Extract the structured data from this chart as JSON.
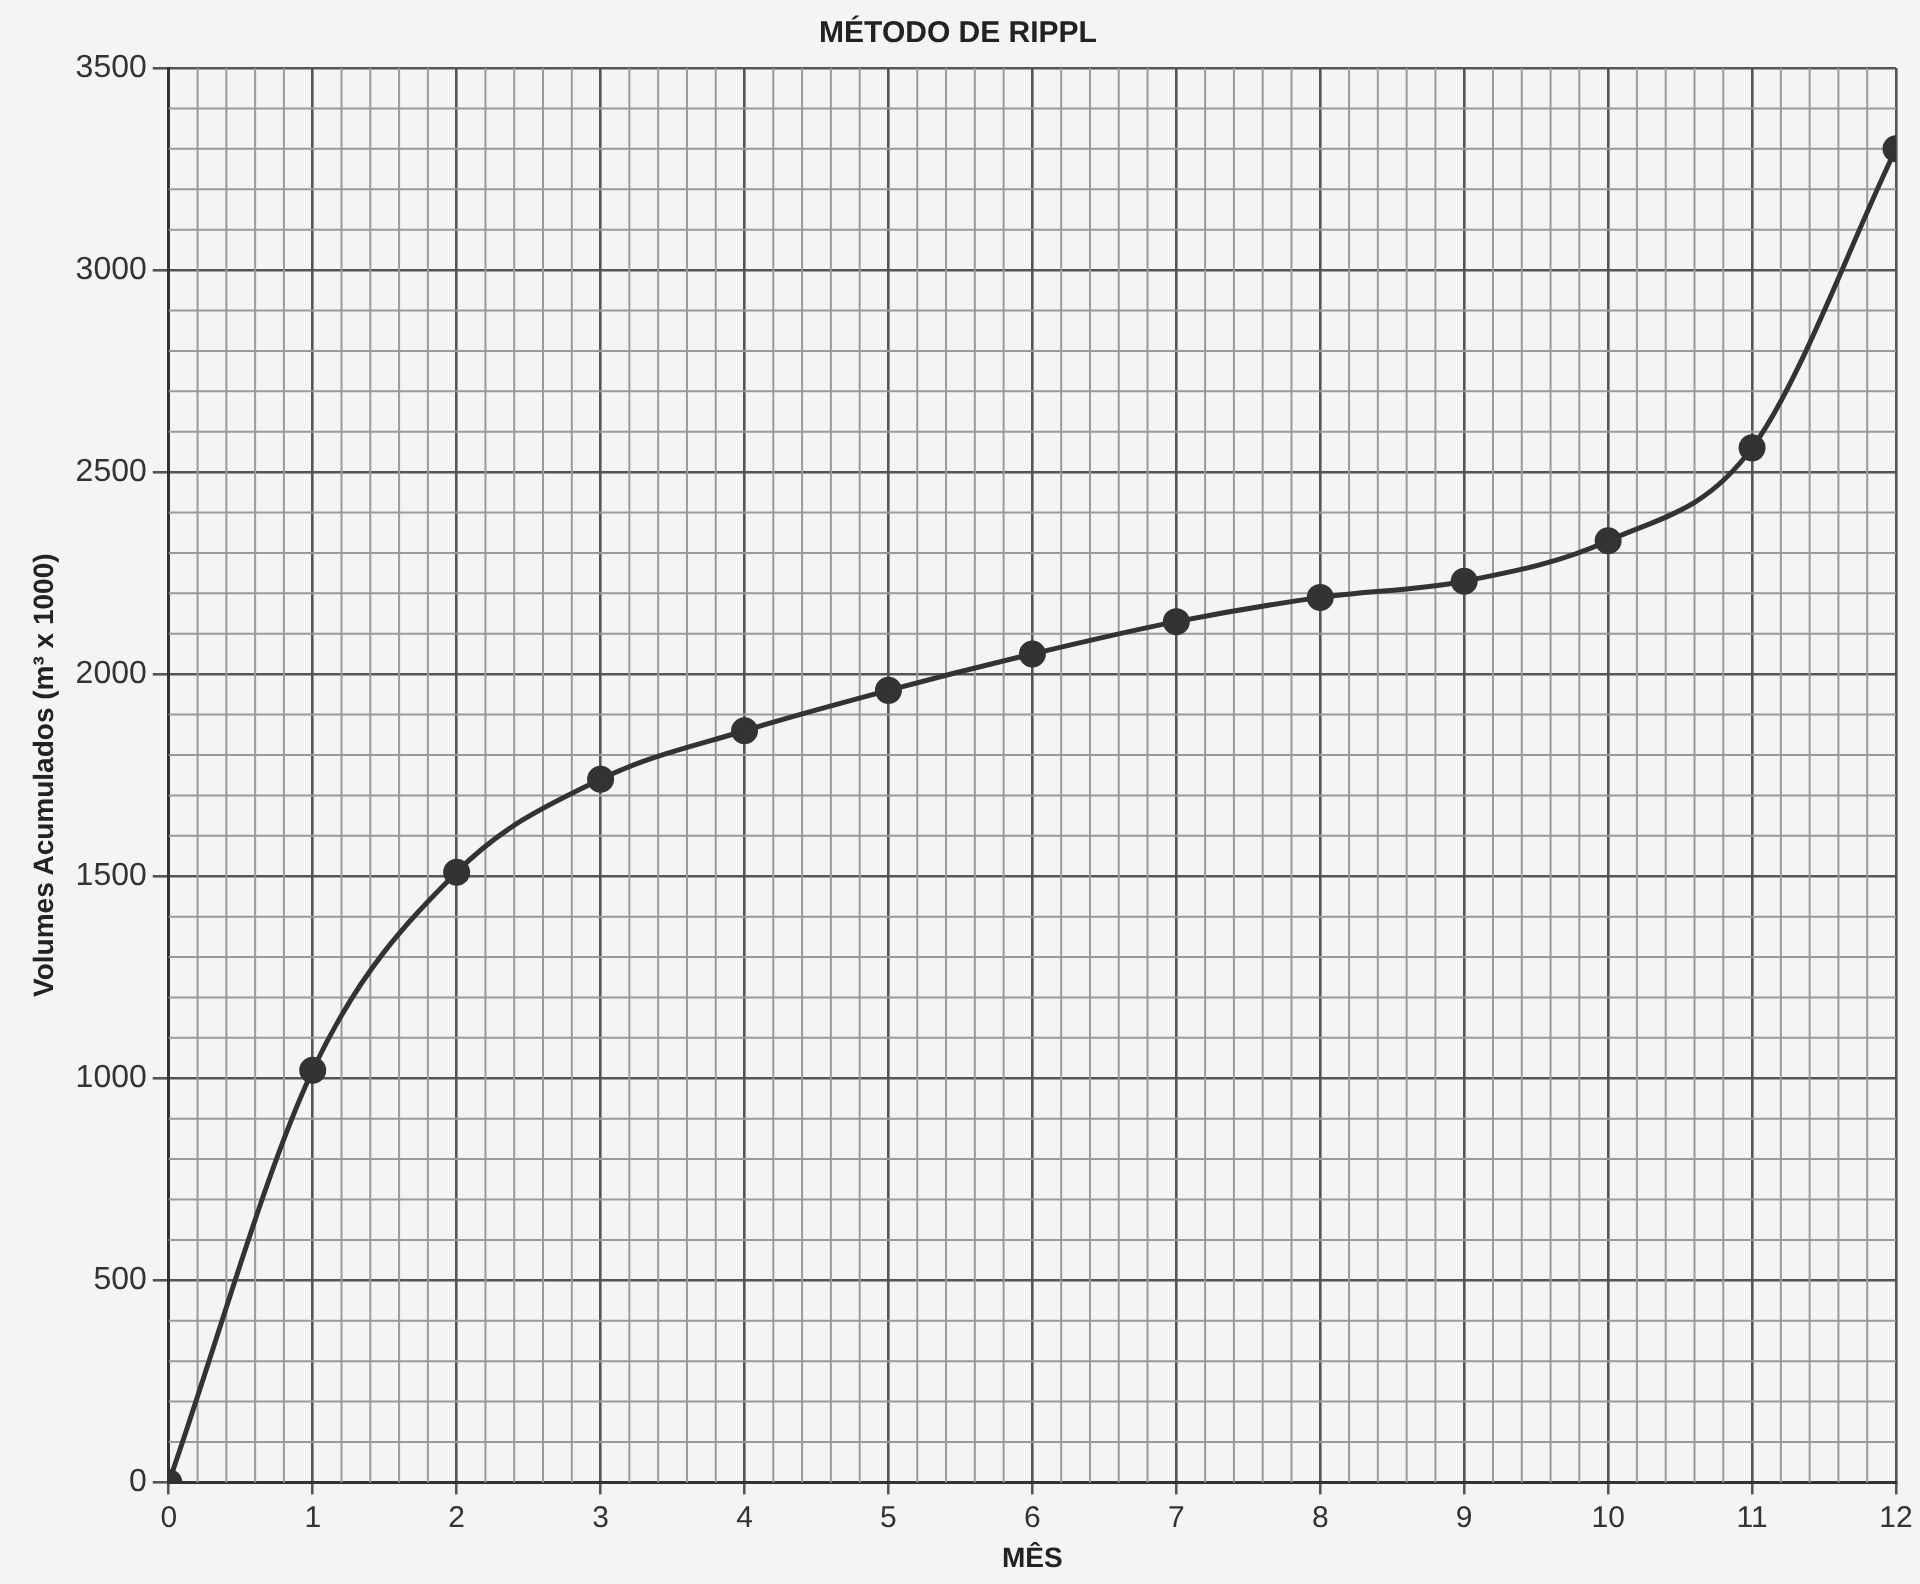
{
  "chart_data": {
    "type": "line",
    "title": "MÉTODO DE RIPPL",
    "xlabel": "MÊS",
    "ylabel": "Volumes Acumulados (m³ x 1000)",
    "x": [
      0,
      1,
      2,
      3,
      4,
      5,
      6,
      7,
      8,
      9,
      10,
      11,
      12
    ],
    "series": [
      {
        "color": "#333333",
        "values": [
          0,
          1020,
          1510,
          1740,
          1860,
          1960,
          2050,
          2130,
          2190,
          2230,
          2330,
          2560,
          3300
        ]
      }
    ],
    "xlim": [
      0,
      12
    ],
    "xticks": [
      0,
      1,
      2,
      3,
      4,
      5,
      6,
      7,
      8,
      9,
      10,
      11,
      12
    ],
    "ylim": [
      0,
      3500
    ],
    "yticks": [
      0,
      500,
      1000,
      1500,
      2000,
      2500,
      3000,
      3500
    ],
    "grid": true,
    "legend": false,
    "marker": "circle",
    "line_style": "solid"
  }
}
